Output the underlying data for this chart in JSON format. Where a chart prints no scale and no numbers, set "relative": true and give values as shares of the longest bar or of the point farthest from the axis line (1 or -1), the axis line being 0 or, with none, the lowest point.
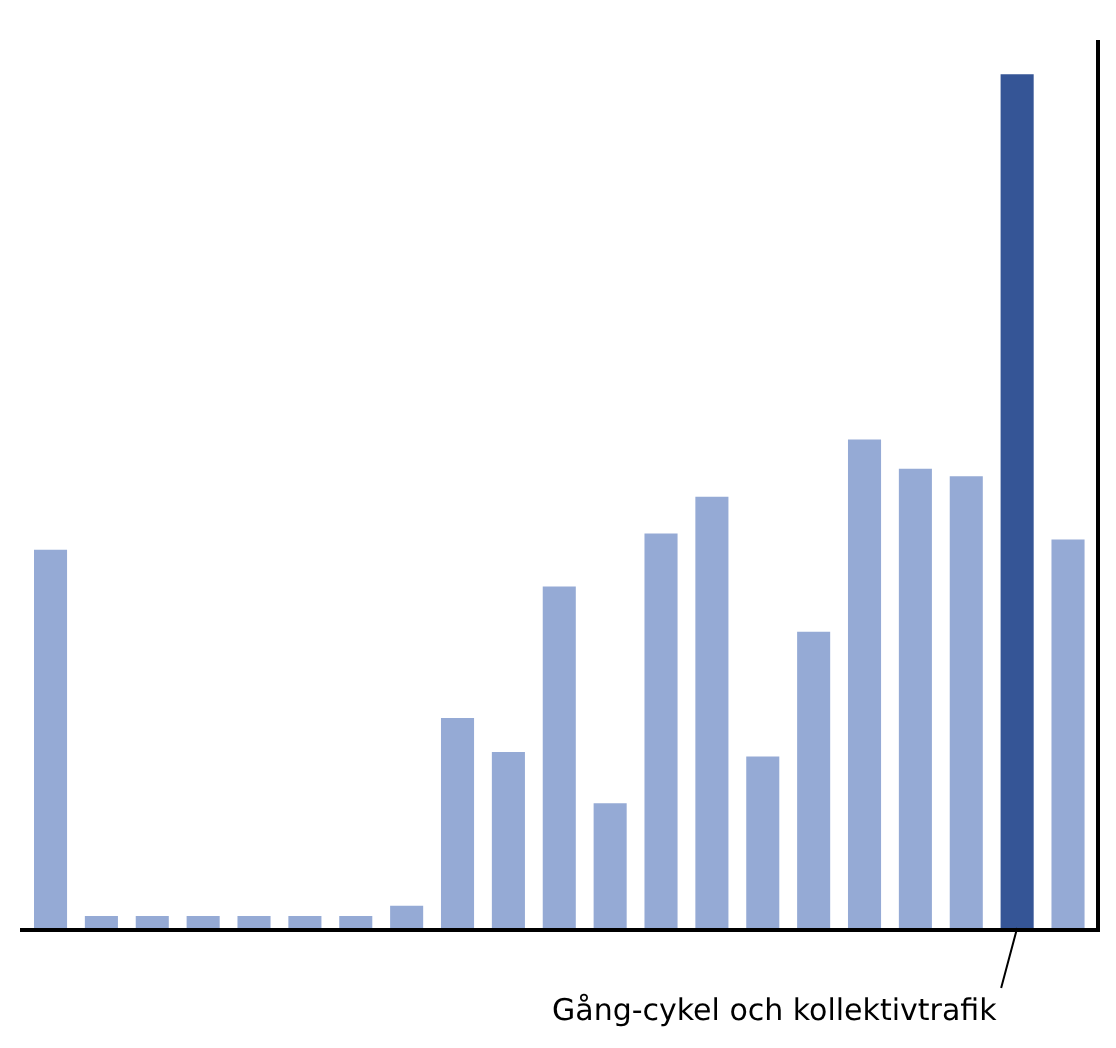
{
  "chart_data": {
    "type": "bar",
    "relative": true,
    "categories": [
      null,
      null,
      null,
      null,
      null,
      null,
      null,
      null,
      null,
      null,
      null,
      null,
      null,
      null,
      null,
      null,
      null,
      null,
      null,
      null,
      null
    ],
    "values": [
      0.443,
      0.014,
      0.014,
      0.014,
      0.014,
      0.014,
      0.014,
      0.026,
      0.246,
      0.206,
      0.4,
      0.146,
      0.462,
      0.505,
      0.201,
      0.347,
      0.572,
      0.538,
      0.529,
      1,
      0.455
    ],
    "colors": [
      "#95aad5",
      "#95aad5",
      "#95aad5",
      "#95aad5",
      "#95aad5",
      "#95aad5",
      "#95aad5",
      "#95aad5",
      "#95aad5",
      "#95aad5",
      "#95aad5",
      "#95aad5",
      "#95aad5",
      "#95aad5",
      "#95aad5",
      "#95aad5",
      "#95aad5",
      "#95aad5",
      "#95aad5",
      "#355596",
      "#95aad5"
    ],
    "annotations": [
      "Gång-cykel och kollektivtrafik"
    ]
  }
}
